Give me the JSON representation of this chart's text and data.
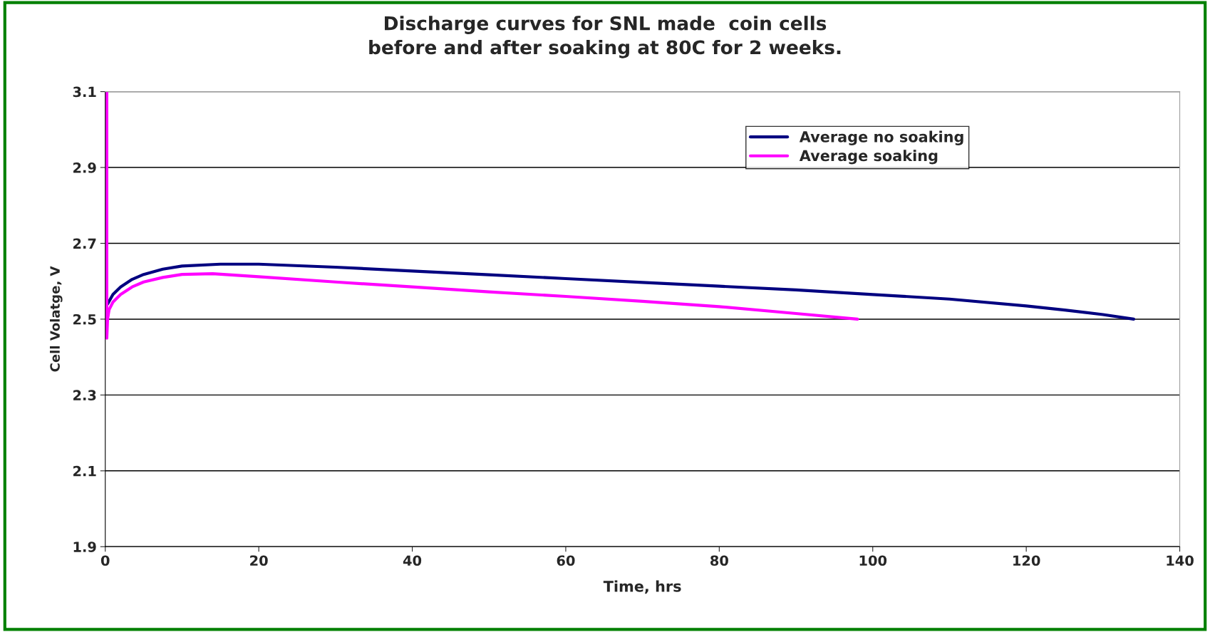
{
  "chart_data": {
    "type": "line",
    "title": "Discharge curves for SNL made  coin cells\nbefore and after soaking at 80C for 2 weeks.",
    "xlabel": "Time, hrs",
    "ylabel": "Cell Volatge, V",
    "xlim": [
      0,
      140
    ],
    "xticks": [
      0,
      20,
      40,
      60,
      80,
      100,
      120,
      140
    ],
    "ylim": [
      1.9,
      3.1
    ],
    "yticks": [
      1.9,
      2.1,
      2.3,
      2.5,
      2.7,
      2.9,
      3.1
    ],
    "grid": "y",
    "legend": "top",
    "marker": "none",
    "line_style": "solid",
    "series": [
      {
        "name": "Average no soaking",
        "color": "#000080",
        "x": [
          0.3,
          1,
          2,
          3.5,
          5,
          7.5,
          10,
          15,
          20,
          30,
          40,
          50,
          60,
          70,
          80,
          90,
          100,
          110,
          120,
          125,
          130,
          134
        ],
        "values": [
          2.54,
          2.565,
          2.585,
          2.605,
          2.618,
          2.632,
          2.64,
          2.645,
          2.645,
          2.637,
          2.627,
          2.617,
          2.607,
          2.597,
          2.587,
          2.577,
          2.565,
          2.553,
          2.535,
          2.524,
          2.512,
          2.5
        ]
      },
      {
        "name": "Average soaking",
        "color": "#ff00ff",
        "x": [
          0.2,
          0.2,
          0.3,
          0.5,
          1,
          2,
          3.5,
          5,
          7.5,
          10,
          14,
          20,
          30,
          40,
          50,
          60,
          70,
          80,
          90,
          98
        ],
        "values": [
          3.1,
          2.45,
          2.5,
          2.525,
          2.545,
          2.565,
          2.585,
          2.598,
          2.61,
          2.618,
          2.62,
          2.612,
          2.598,
          2.585,
          2.572,
          2.56,
          2.547,
          2.533,
          2.515,
          2.5
        ]
      }
    ]
  }
}
